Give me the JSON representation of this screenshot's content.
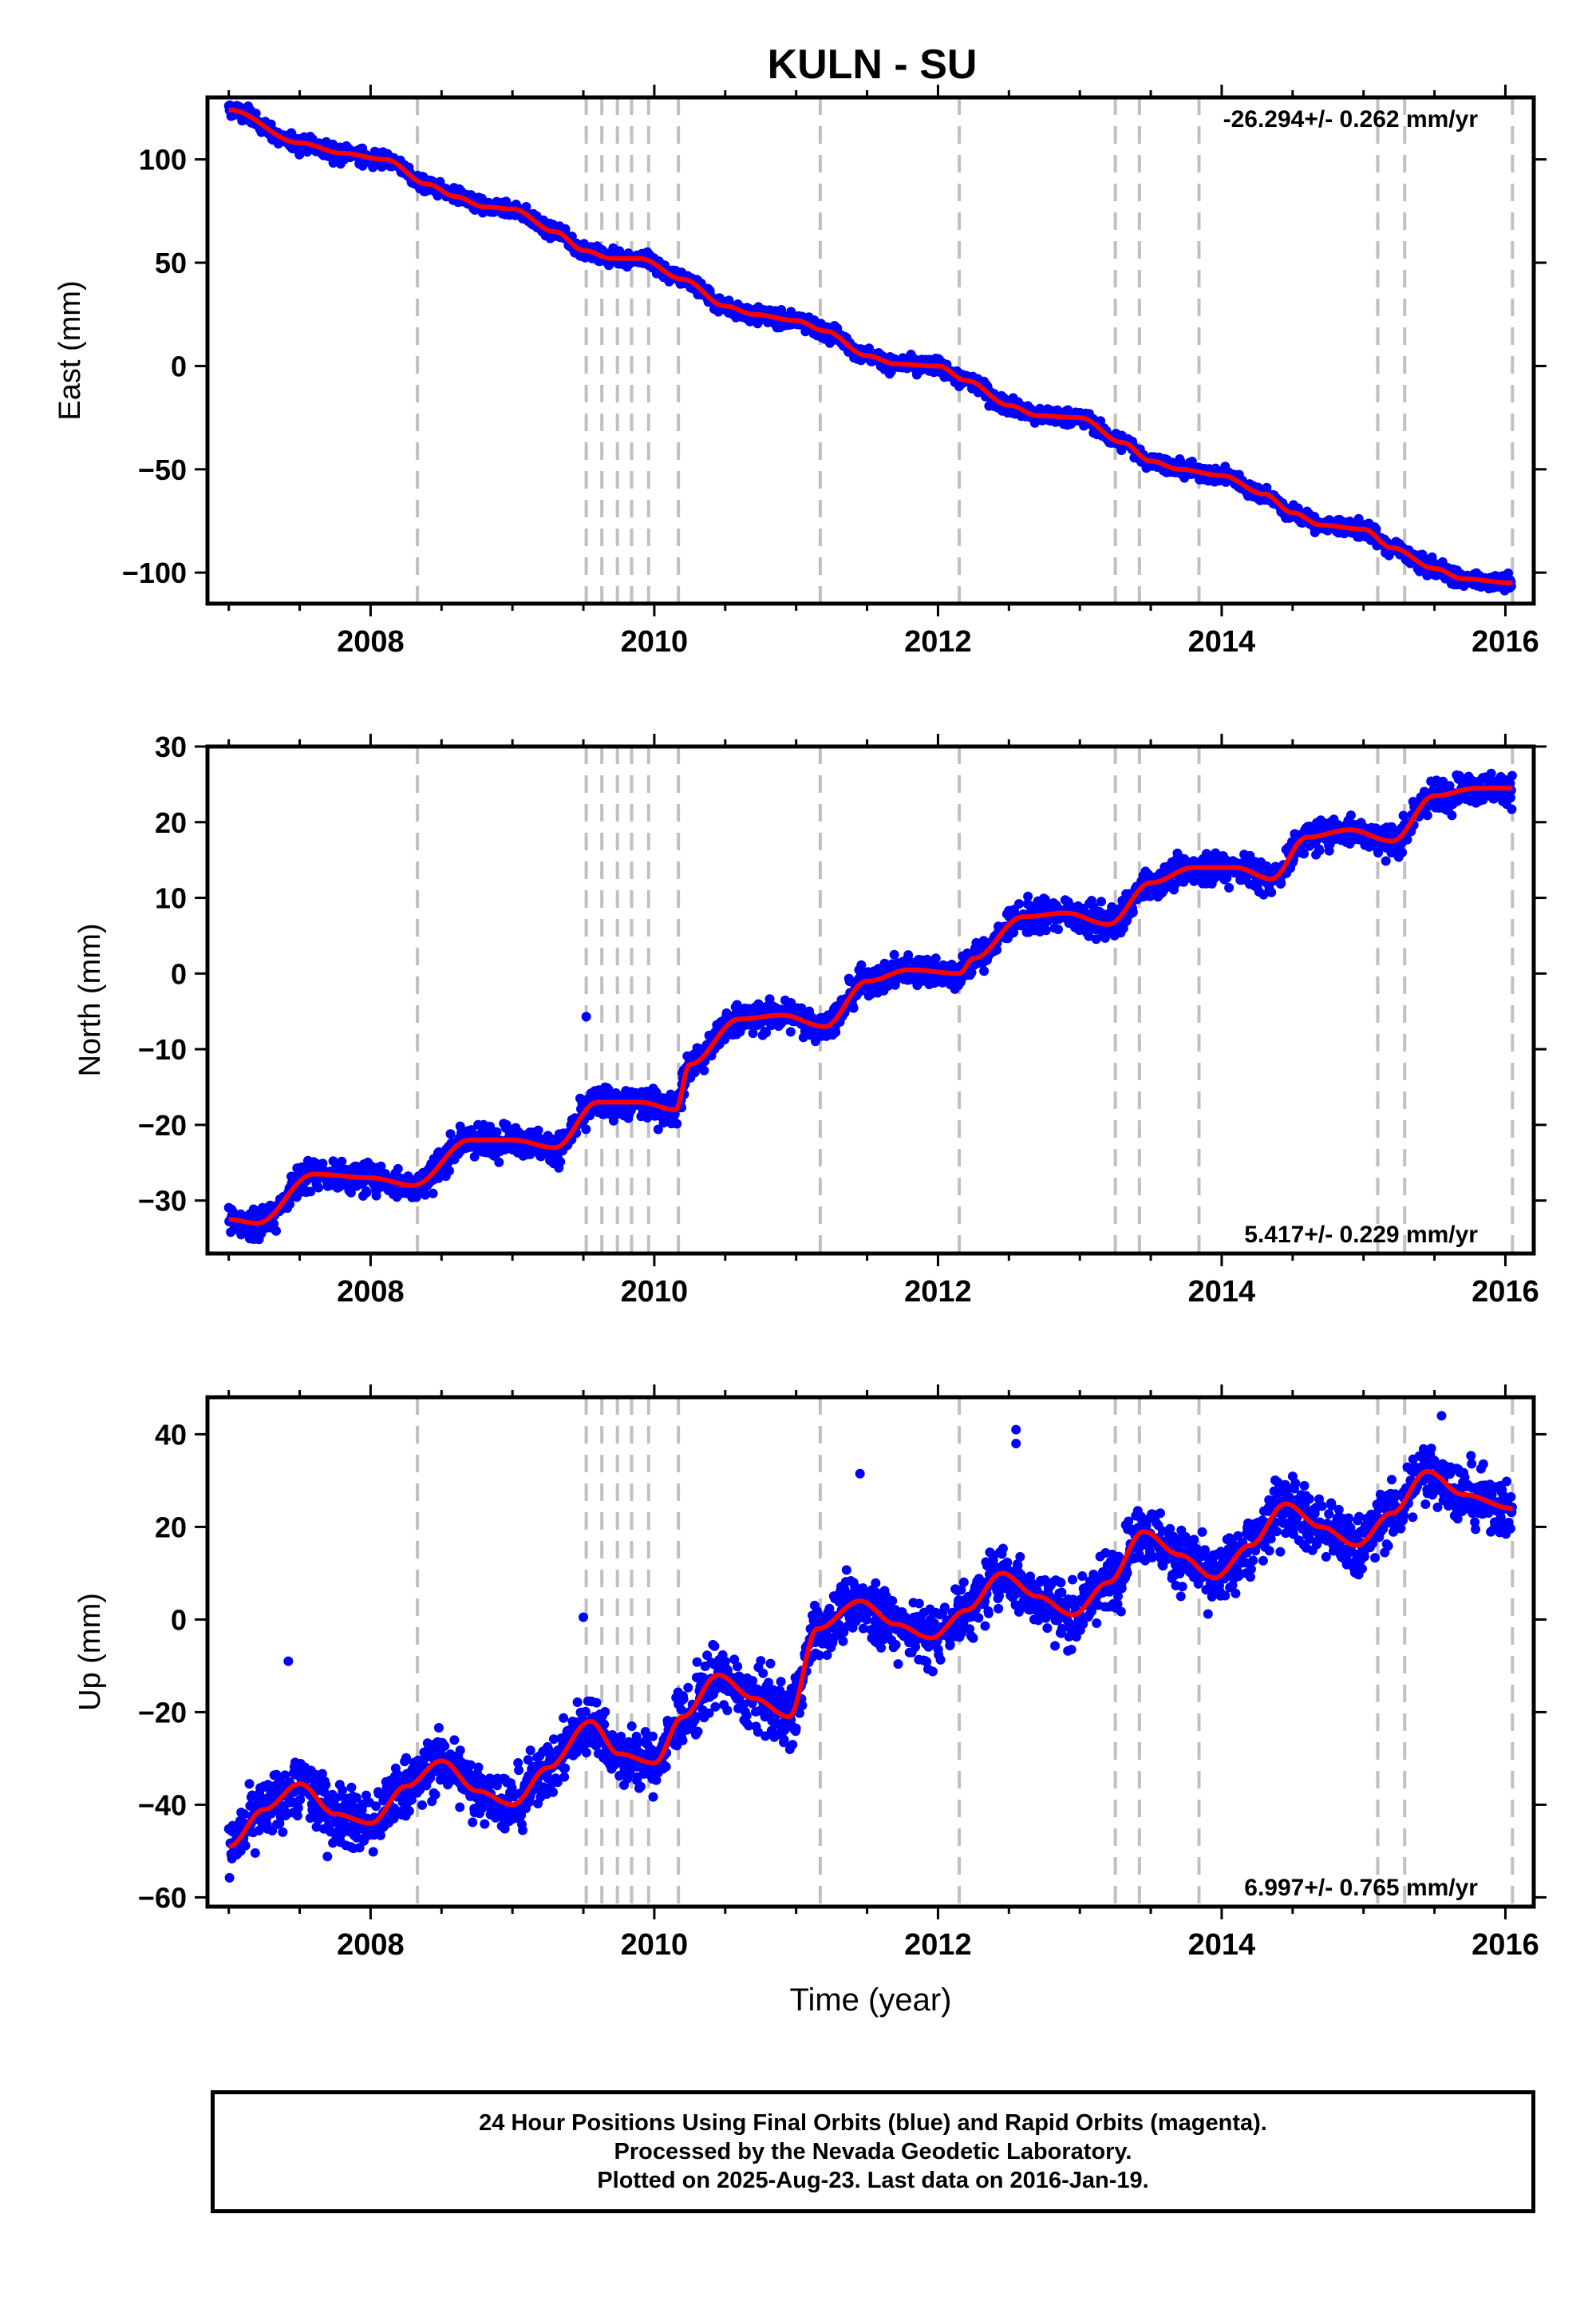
{
  "title": "KULN - SU",
  "colors": {
    "points": "#0000ff",
    "fit": "#ff0000",
    "breaks": "#c0c0c0",
    "frame": "#000000"
  },
  "footer": {
    "line1": "24 Hour Positions Using Final Orbits (blue) and Rapid Orbits (magenta).",
    "line2": "Processed by the Nevada Geodetic Laboratory.",
    "line3": "Plotted on 2025-Aug-23. Last data on 2016-Jan-19."
  },
  "chart_data": [
    {
      "type": "scatter",
      "ylabel": "East (mm)",
      "xlabel": "",
      "rate_label": "-26.294+/- 0.262 mm/yr",
      "rate_position": "top-right",
      "xlim": [
        2006.85,
        2016.2
      ],
      "ylim": [
        -115,
        130
      ],
      "x_ticks": [
        2008,
        2010,
        2012,
        2014,
        2016
      ],
      "x_tick_labels": [
        "2008",
        "2010",
        "2012",
        "2014",
        "2016"
      ],
      "y_ticks": [
        100,
        50,
        0,
        -50,
        -100
      ],
      "y_tick_labels": [
        "100",
        "50",
        "0",
        "−50",
        "−100"
      ],
      "breaks": [
        2008.33,
        2009.52,
        2009.63,
        2009.74,
        2009.84,
        2009.96,
        2010.17,
        2011.17,
        2012.15,
        2013.25,
        2013.42,
        2013.84,
        2015.1,
        2015.29,
        2016.05
      ],
      "fit": {
        "x": [
          2007.0,
          2007.5,
          2007.8,
          2008.1,
          2008.4,
          2008.6,
          2008.8,
          2009.0,
          2009.3,
          2009.5,
          2009.7,
          2009.9,
          2010.2,
          2010.5,
          2010.7,
          2011.0,
          2011.2,
          2011.5,
          2011.7,
          2012.0,
          2012.2,
          2012.5,
          2012.7,
          2013.0,
          2013.3,
          2013.5,
          2013.7,
          2014.0,
          2014.3,
          2014.5,
          2014.7,
          2015.0,
          2015.2,
          2015.5,
          2015.7,
          2016.05
        ],
        "y": [
          124,
          108,
          103,
          100,
          88,
          82,
          77,
          76,
          65,
          56,
          52,
          52,
          42,
          29,
          25,
          22,
          17,
          5,
          1,
          0,
          -7,
          -19,
          -24,
          -25,
          -37,
          -46,
          -50,
          -53,
          -62,
          -71,
          -77,
          -79,
          -88,
          -98,
          -103,
          -105
        ]
      },
      "scatter": {
        "spread": 2.6,
        "days": 3306,
        "fraction_shown": 0.82,
        "outliers": []
      }
    },
    {
      "type": "scatter",
      "ylabel": "North (mm)",
      "xlabel": "",
      "rate_label": "5.417+/- 0.229 mm/yr",
      "rate_position": "bottom-right",
      "xlim": [
        2006.85,
        2016.2
      ],
      "ylim": [
        -37,
        30
      ],
      "x_ticks": [
        2008,
        2010,
        2012,
        2014,
        2016
      ],
      "x_tick_labels": [
        "2008",
        "2010",
        "2012",
        "2014",
        "2016"
      ],
      "y_ticks": [
        30,
        20,
        10,
        0,
        -10,
        -20,
        -30
      ],
      "y_tick_labels": [
        "30",
        "20",
        "10",
        "0",
        "−10",
        "−20",
        "−30"
      ],
      "breaks": [
        2008.33,
        2009.52,
        2009.63,
        2009.74,
        2009.84,
        2009.96,
        2010.17,
        2011.17,
        2012.15,
        2013.25,
        2013.42,
        2013.84,
        2015.1,
        2015.29,
        2016.05
      ],
      "fit": {
        "x": [
          2007.0,
          2007.2,
          2007.6,
          2008.0,
          2008.3,
          2008.7,
          2009.0,
          2009.3,
          2009.6,
          2009.9,
          2010.15,
          2010.25,
          2010.6,
          2010.9,
          2011.2,
          2011.5,
          2011.8,
          2012.15,
          2012.25,
          2012.6,
          2012.9,
          2013.2,
          2013.5,
          2013.8,
          2014.1,
          2014.35,
          2014.6,
          2014.9,
          2015.2,
          2015.5,
          2015.8,
          2016.05
        ],
        "y": [
          -32.5,
          -33,
          -26.5,
          -27,
          -28,
          -22,
          -22,
          -23,
          -17,
          -17,
          -18,
          -12,
          -6,
          -5.5,
          -7,
          -1,
          0.5,
          0,
          2,
          7.5,
          8,
          6.5,
          12,
          14,
          14,
          12.5,
          18,
          19,
          17.5,
          23.5,
          24.5,
          24.5
        ]
      },
      "scatter": {
        "spread": 1.4,
        "days": 3306,
        "fraction_shown": 0.82,
        "outliers": [
          [
            2009.52,
            -5.7
          ]
        ]
      }
    },
    {
      "type": "scatter",
      "ylabel": "Up (mm)",
      "xlabel": "Time (year)",
      "rate_label": "6.997+/- 0.765 mm/yr",
      "rate_position": "bottom-right",
      "xlim": [
        2006.85,
        2016.2
      ],
      "ylim": [
        -62,
        48
      ],
      "x_ticks": [
        2008,
        2010,
        2012,
        2014,
        2016
      ],
      "x_tick_labels": [
        "2008",
        "2010",
        "2012",
        "2014",
        "2016"
      ],
      "y_ticks": [
        40,
        20,
        0,
        -20,
        -40,
        -60
      ],
      "y_tick_labels": [
        "40",
        "20",
        "0",
        "−20",
        "−40",
        "−60"
      ],
      "breaks": [
        2008.33,
        2009.52,
        2009.63,
        2009.74,
        2009.84,
        2009.96,
        2010.17,
        2011.17,
        2012.15,
        2013.25,
        2013.42,
        2013.84,
        2015.1,
        2015.29,
        2016.05
      ],
      "fit": {
        "x": [
          2007.0,
          2007.25,
          2007.5,
          2007.75,
          2008.0,
          2008.25,
          2008.5,
          2008.75,
          2009.0,
          2009.25,
          2009.55,
          2009.75,
          2010.0,
          2010.2,
          2010.45,
          2010.7,
          2010.95,
          2011.15,
          2011.45,
          2011.7,
          2011.95,
          2012.2,
          2012.45,
          2012.7,
          2012.95,
          2013.2,
          2013.45,
          2013.7,
          2013.95,
          2014.2,
          2014.45,
          2014.7,
          2014.95,
          2015.2,
          2015.45,
          2015.7,
          2016.05
        ],
        "y": [
          -49,
          -41,
          -35.5,
          -42,
          -44,
          -36,
          -30.5,
          -37,
          -40,
          -32,
          -22,
          -29,
          -31,
          -21,
          -12,
          -17,
          -21,
          -2,
          4,
          -1,
          -4,
          2,
          10,
          5,
          1,
          8,
          19,
          14,
          9,
          16,
          25,
          20,
          16,
          23,
          32,
          27,
          24
        ]
      },
      "scatter": {
        "spread": 4.5,
        "days": 3306,
        "fraction_shown": 0.82,
        "outliers": [
          [
            2007.42,
            -9
          ],
          [
            2011.45,
            31.5
          ],
          [
            2012.55,
            41
          ],
          [
            2009.5,
            0.5
          ],
          [
            2012.55,
            38
          ],
          [
            2015.55,
            44
          ]
        ]
      }
    }
  ]
}
